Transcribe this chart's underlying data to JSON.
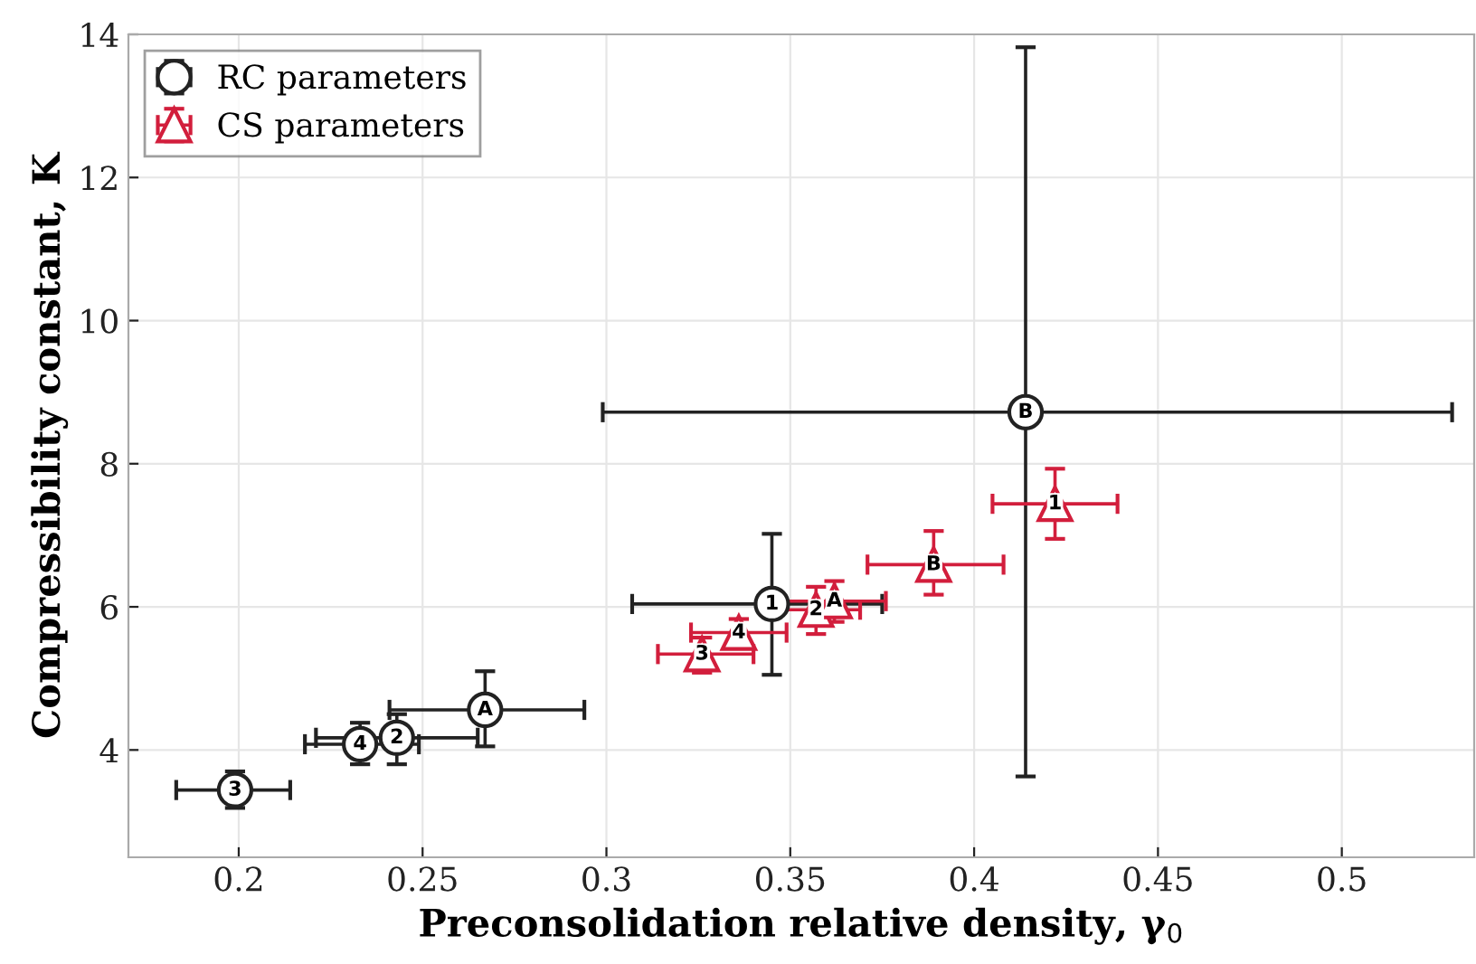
{
  "chart_data": {
    "type": "scatter",
    "xlabel": "Preconsolidation relative density, γ$_{0}$",
    "ylabel": "Compressibility constant, K",
    "xlim": [
      0.17,
      0.536
    ],
    "xticks": [
      0.2,
      0.25,
      0.3,
      0.35,
      0.4,
      0.45,
      0.5
    ],
    "ylim": [
      2.5,
      14
    ],
    "yticks": [
      4,
      6,
      8,
      10,
      12,
      14
    ],
    "grid": true,
    "legend": "top left",
    "series": [
      {
        "name": "RC parameters",
        "color": "#222222",
        "marker": "circle",
        "x": [
          0.199,
          0.233,
          0.243,
          0.267,
          0.345,
          0.414
        ],
        "values": [
          3.44,
          4.08,
          4.17,
          4.56,
          6.04,
          8.72
        ],
        "errors": [
          [
            3.19,
            3.7
          ],
          [
            3.8,
            4.38
          ],
          [
            3.8,
            4.5
          ],
          [
            4.05,
            5.1
          ],
          [
            5.05,
            7.02
          ],
          [
            3.63,
            13.82
          ]
        ],
        "xerrors": [
          [
            0.183,
            0.214
          ],
          [
            0.218,
            0.249
          ],
          [
            0.221,
            0.265
          ],
          [
            0.241,
            0.294
          ],
          [
            0.307,
            0.375
          ],
          [
            0.299,
            0.53
          ]
        ]
      },
      {
        "name": "CS parameters",
        "color": "#d21e3c",
        "marker": "triangle",
        "x": [
          0.326,
          0.336,
          0.357,
          0.362,
          0.389,
          0.422
        ],
        "values": [
          5.34,
          5.64,
          5.96,
          6.08,
          6.59,
          7.44
        ],
        "errors": [
          [
            5.08,
            5.57
          ],
          [
            5.45,
            5.83
          ],
          [
            5.62,
            6.28
          ],
          [
            5.79,
            6.36
          ],
          [
            6.17,
            7.06
          ],
          [
            6.95,
            7.93
          ]
        ],
        "xerrors": [
          [
            0.314,
            0.34
          ],
          [
            0.323,
            0.349
          ],
          [
            0.345,
            0.369
          ],
          [
            0.347,
            0.376
          ],
          [
            0.371,
            0.408
          ],
          [
            0.405,
            0.439
          ]
        ]
      }
    ],
    "annotations": [
      {
        "text": "3",
        "x": 0.199,
        "y": 3.44
      },
      {
        "text": "4",
        "x": 0.233,
        "y": 4.08
      },
      {
        "text": "2",
        "x": 0.243,
        "y": 4.17
      },
      {
        "text": "A",
        "x": 0.267,
        "y": 4.56
      },
      {
        "text": "1",
        "x": 0.345,
        "y": 6.04
      },
      {
        "text": "B",
        "x": 0.414,
        "y": 8.72
      },
      {
        "text": "3",
        "x": 0.326,
        "y": 5.34
      },
      {
        "text": "4",
        "x": 0.336,
        "y": 5.64
      },
      {
        "text": "2",
        "x": 0.357,
        "y": 5.96
      },
      {
        "text": "A",
        "x": 0.362,
        "y": 6.08
      },
      {
        "text": "B",
        "x": 0.389,
        "y": 6.59
      },
      {
        "text": "1",
        "x": 0.422,
        "y": 7.44
      }
    ]
  }
}
